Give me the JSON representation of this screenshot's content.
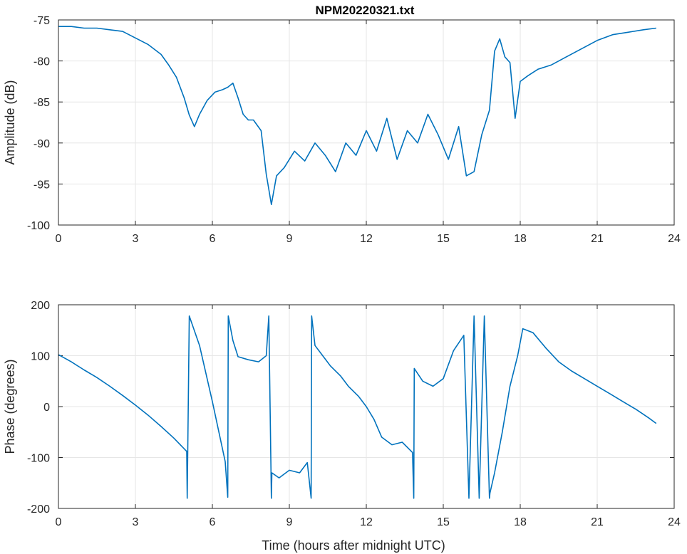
{
  "figure": {
    "title": "NPM20220321.txt",
    "xlabel": "Time (hours after midnight UTC)"
  },
  "chart_data": [
    {
      "type": "line",
      "title": "NPM20220321.txt",
      "xlabel": "",
      "ylabel": "Amplitude (dB)",
      "xlim": [
        0,
        24
      ],
      "ylim": [
        -100,
        -75
      ],
      "xticks": [
        "0",
        "3",
        "6",
        "9",
        "12",
        "15",
        "18",
        "21",
        "24"
      ],
      "yticks": [
        "-75",
        "-80",
        "-85",
        "-90",
        "-95",
        "-100"
      ],
      "grid": true,
      "line_color": "#0072BD",
      "series": [
        {
          "x": [
            0,
            0.5,
            1,
            1.5,
            2,
            2.5,
            3,
            3.5,
            4,
            4.3,
            4.6,
            4.9,
            5.1,
            5.3,
            5.5,
            5.8,
            6.1,
            6.4,
            6.6,
            6.8,
            7.0,
            7.2,
            7.4,
            7.6,
            7.9,
            8.1,
            8.3,
            8.5,
            8.8,
            9.2,
            9.6,
            10.0,
            10.4,
            10.8,
            11.2,
            11.6,
            12.0,
            12.4,
            12.8,
            13.2,
            13.6,
            14.0,
            14.4,
            14.8,
            15.2,
            15.6,
            15.9,
            16.2,
            16.5,
            16.8,
            17.0,
            17.2,
            17.4,
            17.6,
            17.8,
            18.0,
            18.3,
            18.7,
            19.2,
            19.8,
            20.4,
            21.0,
            21.6,
            22.2,
            22.8,
            23.3
          ],
          "y": [
            -75.8,
            -75.8,
            -76.0,
            -76.0,
            -76.2,
            -76.4,
            -77.2,
            -78.0,
            -79.2,
            -80.5,
            -82.0,
            -84.5,
            -86.6,
            -88.0,
            -86.5,
            -84.8,
            -83.8,
            -83.5,
            -83.2,
            -82.7,
            -84.5,
            -86.5,
            -87.2,
            -87.2,
            -88.5,
            -93.8,
            -97.5,
            -94.0,
            -93.0,
            -91.0,
            -92.2,
            -90.0,
            -91.5,
            -93.5,
            -90.0,
            -91.5,
            -88.5,
            -91.0,
            -87.0,
            -92.0,
            -88.5,
            -90.0,
            -86.5,
            -89.0,
            -92.0,
            -88.0,
            -94.0,
            -93.5,
            -89.0,
            -86.0,
            -78.8,
            -77.3,
            -79.5,
            -80.2,
            -87.0,
            -82.5,
            -81.8,
            -81.0,
            -80.5,
            -79.5,
            -78.5,
            -77.5,
            -76.8,
            -76.5,
            -76.2,
            -76.0
          ]
        }
      ]
    },
    {
      "type": "line",
      "title": "",
      "xlabel": "Time (hours after midnight UTC)",
      "ylabel": "Phase (degrees)",
      "xlim": [
        0,
        24
      ],
      "ylim": [
        -200,
        200
      ],
      "xticks": [
        "0",
        "3",
        "6",
        "9",
        "12",
        "15",
        "18",
        "21",
        "24"
      ],
      "yticks": [
        "200",
        "100",
        "0",
        "-100",
        "-200"
      ],
      "grid": true,
      "line_color": "#0072BD",
      "series": [
        {
          "x": [
            0,
            0.5,
            1,
            1.5,
            2,
            2.5,
            3,
            3.5,
            4,
            4.5,
            5.0,
            5.02,
            5.1,
            5.5,
            6.0,
            6.5,
            6.6,
            6.62,
            6.8,
            7.0,
            7.4,
            7.8,
            8.1,
            8.2,
            8.3,
            8.32,
            8.6,
            9.0,
            9.4,
            9.7,
            9.85,
            9.87,
            10.0,
            10.3,
            10.6,
            11.0,
            11.3,
            11.7,
            12.0,
            12.3,
            12.6,
            13.0,
            13.4,
            13.8,
            13.85,
            13.87,
            14.2,
            14.6,
            15.0,
            15.4,
            15.8,
            16.0,
            16.2,
            16.4,
            16.6,
            16.8,
            16.82,
            17.0,
            17.3,
            17.6,
            17.9,
            18.1,
            18.5,
            19.0,
            19.5,
            20.0,
            20.5,
            21.0,
            21.5,
            22.0,
            22.5,
            23.0,
            23.3
          ],
          "y": [
            102,
            88,
            72,
            57,
            40,
            22,
            3,
            -17,
            -39,
            -62,
            -88,
            -180,
            178,
            120,
            10,
            -108,
            -178,
            178,
            130,
            98,
            92,
            88,
            100,
            178,
            -180,
            -130,
            -140,
            -125,
            -130,
            -110,
            -180,
            178,
            120,
            100,
            80,
            60,
            40,
            20,
            0,
            -25,
            -60,
            -75,
            -70,
            -90,
            -180,
            75,
            50,
            40,
            55,
            110,
            140,
            -180,
            178,
            -180,
            178,
            -180,
            -170,
            -130,
            -50,
            40,
            100,
            153,
            145,
            115,
            88,
            70,
            55,
            40,
            25,
            10,
            -5,
            -22,
            -33
          ]
        }
      ]
    }
  ]
}
